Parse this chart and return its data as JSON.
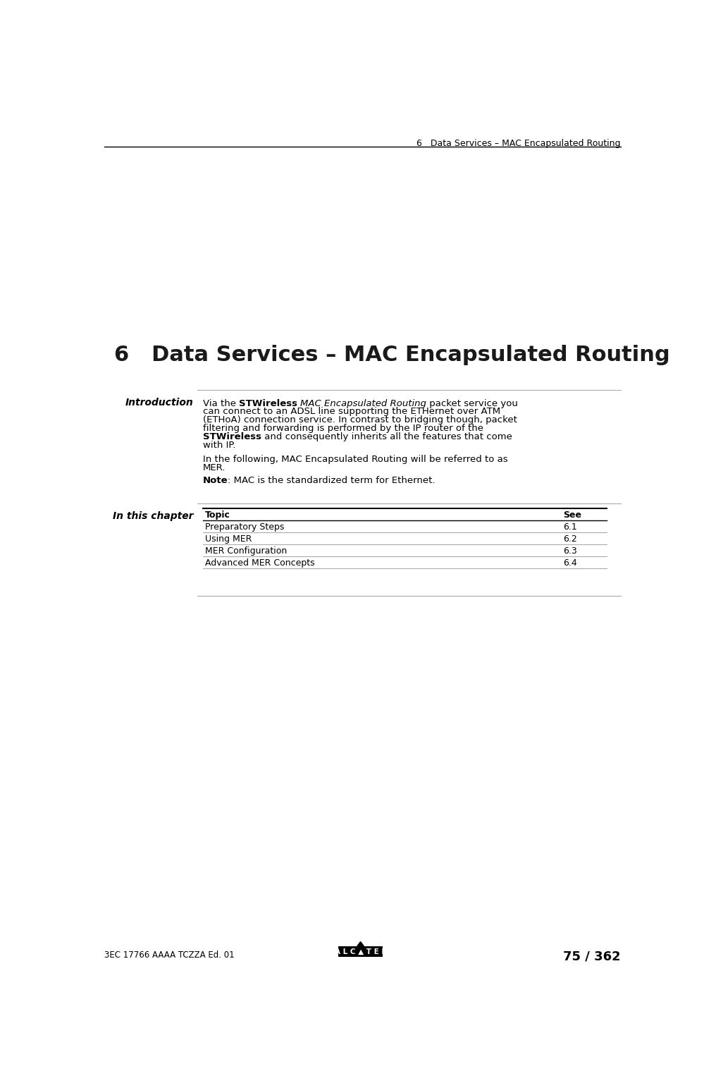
{
  "bg_color": "#ffffff",
  "header_text": "6   Data Services – MAC Encapsulated Routing",
  "chapter_title": "6   Data Services – MAC Encapsulated Routing",
  "section_label_introduction": "Introduction",
  "section_label_in_this_chapter": "In this chapter",
  "table_header": [
    "Topic",
    "See"
  ],
  "table_rows": [
    [
      "Preparatory Steps",
      "6.1"
    ],
    [
      "Using MER",
      "6.2"
    ],
    [
      "MER Configuration",
      "6.3"
    ],
    [
      "Advanced MER Concepts",
      "6.4"
    ]
  ],
  "footer_left": "3EC 17766 AAAA TCZZA Ed. 01",
  "footer_right": "75 / 362",
  "text_color": "#000000",
  "line_color": "#aaaaaa",
  "body_fontsize": 9.5,
  "p1_lines": [
    [
      {
        "text": "Via the ",
        "bold": false,
        "italic": false
      },
      {
        "text": "STWireless",
        "bold": true,
        "italic": false
      },
      {
        "text": " ",
        "bold": false,
        "italic": false
      },
      {
        "text": "MAC Encapsulated Routing",
        "bold": false,
        "italic": true
      },
      {
        "text": " packet service you",
        "bold": false,
        "italic": false
      }
    ],
    [
      {
        "text": "can connect to an ADSL line supporting the ETHernet over ATM",
        "bold": false,
        "italic": false
      }
    ],
    [
      {
        "text": "(ETHoA) connection service. In contrast to bridging though, packet",
        "bold": false,
        "italic": false
      }
    ],
    [
      {
        "text": "filtering and forwarding is performed by the IP router of the",
        "bold": false,
        "italic": false
      }
    ],
    [
      {
        "text": "STWireless",
        "bold": true,
        "italic": false
      },
      {
        "text": " and consequently inherits all the features that come",
        "bold": false,
        "italic": false
      }
    ],
    [
      {
        "text": "with IP.",
        "bold": false,
        "italic": false
      }
    ]
  ],
  "p2_lines": [
    "In the following, MAC Encapsulated Routing will be referred to as",
    "MER."
  ],
  "p3_segments": [
    {
      "text": "Note",
      "bold": true,
      "italic": false
    },
    {
      "text": ": MAC is the standardized term for Ethernet.",
      "bold": false,
      "italic": false
    }
  ]
}
